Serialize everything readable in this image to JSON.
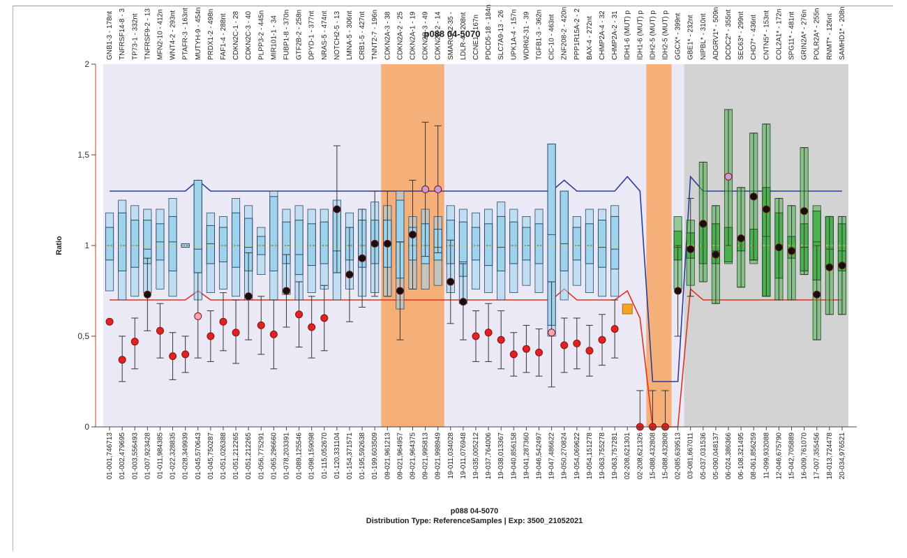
{
  "chart_data": {
    "type": "box",
    "title": "p088 04-5070",
    "ylabel": "Ratio",
    "xlabel": "p088 04-5070",
    "subtitle": "Distribution Type: ReferenceSamples | Exp: 3500_21052021",
    "ylim": [
      0,
      2
    ],
    "yticks": [
      "0",
      "0,5",
      "1",
      "1,5",
      "2"
    ],
    "threshold_upper": 1.3,
    "threshold_lower": 0.7,
    "colors": {
      "background": "#ebe9f6",
      "highlight": "#f5b07a",
      "gray_region": "#d3d3d3",
      "blue_box": "#9fd3ec",
      "blue_box_edge": "#2b4a6b",
      "green_box": "#4caf50",
      "green_box_edge": "#1f4d22",
      "upper_line": "#2a3b9a",
      "lower_line": "#e03020",
      "red_point": "#e02222",
      "black_point": "#111111",
      "pink_point": "#f2a7b8",
      "lilac_point": "#c79ed6",
      "orange_point": "#f5a524",
      "median_mark": "#e8d84a"
    },
    "regions": [
      {
        "kind": "highlight",
        "from": 22,
        "to": 26
      },
      {
        "kind": "highlight",
        "from": 43,
        "to": 44
      },
      {
        "kind": "gray",
        "from": 46,
        "to": 58
      }
    ],
    "probes": [
      {
        "top": "GNB1-3 - 178nt",
        "bottom": "01-001,746713",
        "q1": 0.92,
        "q3": 1.1,
        "median": 1.0,
        "wl": 0.75,
        "wh": 1.18,
        "point": 0.58,
        "pc": "red",
        "box": "blue"
      },
      {
        "top": "TNFRSF14-8 - 3",
        "bottom": "01-002,479695",
        "q1": 0.86,
        "q3": 1.18,
        "median": 1.0,
        "wl": 0.7,
        "wh": 1.25,
        "point": 0.37,
        "pc": "red",
        "box": "blue",
        "el": 0.25,
        "eh": 0.5
      },
      {
        "top": "TP73-1 - 332nt",
        "bottom": "01-003,556493",
        "q1": 0.88,
        "q3": 1.14,
        "median": 1.0,
        "wl": 0.72,
        "wh": 1.22,
        "point": 0.47,
        "pc": "red",
        "box": "blue",
        "el": 0.32,
        "eh": 0.6
      },
      {
        "top": "TNFRSF9-2 - 13",
        "bottom": "01-007,923428",
        "q1": 0.9,
        "q3": 1.14,
        "median": 0.98,
        "wl": 0.74,
        "wh": 1.2,
        "point": 0.73,
        "pc": "black",
        "box": "blue",
        "el": 0.53,
        "eh": 0.93
      },
      {
        "top": "MFN2-10 - 412n",
        "bottom": "01-011,984385",
        "q1": 0.92,
        "q3": 1.12,
        "median": 1.02,
        "wl": 0.76,
        "wh": 1.2,
        "point": 0.53,
        "pc": "red",
        "box": "blue",
        "el": 0.38,
        "eh": 0.68
      },
      {
        "top": "WNT4-2 - 293nt",
        "bottom": "01-022,328835",
        "q1": 0.86,
        "q3": 1.16,
        "median": 1.02,
        "wl": 0.72,
        "wh": 1.26,
        "point": 0.39,
        "pc": "red",
        "box": "blue",
        "el": 0.26,
        "eh": 0.52
      },
      {
        "top": "PTAFR-3 - 163nt",
        "bottom": "01-028,349939",
        "q1": 0.99,
        "q3": 1.01,
        "median": 1.0,
        "wl": 0.99,
        "wh": 1.01,
        "point": 0.4,
        "pc": "red",
        "box": "blue",
        "el": 0.3,
        "eh": 0.5
      },
      {
        "top": "MUTYH-9 - 454n",
        "bottom": "01-045,570643",
        "q1": 0.85,
        "q3": 1.36,
        "median": 0.98,
        "wl": 0.7,
        "wh": 1.36,
        "point": 0.61,
        "pc": "pink",
        "box": "blue",
        "el": 0.38,
        "eh": 0.85
      },
      {
        "top": "PRDX1-2 - 498n",
        "bottom": "01-045,750287",
        "q1": 0.9,
        "q3": 1.11,
        "median": 1.01,
        "wl": 0.74,
        "wh": 1.18,
        "point": 0.5,
        "pc": "red",
        "box": "blue",
        "el": 0.36,
        "eh": 0.64
      },
      {
        "top": "FAF1-4 - 288nt",
        "bottom": "01-051,026388",
        "q1": 0.91,
        "q3": 1.1,
        "median": 1.0,
        "wl": 0.76,
        "wh": 1.16,
        "point": 0.58,
        "pc": "red",
        "box": "blue",
        "el": 0.42,
        "eh": 0.74
      },
      {
        "top": "CDKN2C-1 - 28",
        "bottom": "01-051,212265",
        "q1": 0.88,
        "q3": 1.18,
        "median": 1.0,
        "wl": 0.72,
        "wh": 1.26,
        "point": 0.52,
        "pc": "red",
        "box": "blue",
        "el": 0.35,
        "eh": 0.7
      },
      {
        "top": "CDKN2C-3 - 40",
        "bottom": "01-051,212265",
        "q1": 0.86,
        "q3": 1.15,
        "median": 0.99,
        "wl": 0.7,
        "wh": 1.22,
        "point": 0.72,
        "pc": "black",
        "box": "blue",
        "el": 0.48,
        "eh": 0.96
      },
      {
        "top": "PLPP3-2 - 445n",
        "bottom": "01-056,775291",
        "q1": 0.95,
        "q3": 1.05,
        "median": 1.0,
        "wl": 0.84,
        "wh": 1.1,
        "point": 0.56,
        "pc": "red",
        "box": "blue",
        "el": 0.4,
        "eh": 0.72
      },
      {
        "top": "MIR101-1 - 34",
        "bottom": "01-065,296660",
        "q1": 0.86,
        "q3": 1.27,
        "median": 1.0,
        "wl": 0.7,
        "wh": 1.3,
        "point": 0.51,
        "pc": "red",
        "box": "blue",
        "el": 0.32,
        "eh": 0.7
      },
      {
        "top": "FUBP1-8 - 370n",
        "bottom": "01-078,203391",
        "q1": 0.9,
        "q3": 1.13,
        "median": 1.0,
        "wl": 0.73,
        "wh": 1.2,
        "point": 0.75,
        "pc": "black",
        "box": "blue",
        "el": 0.55,
        "eh": 0.95
      },
      {
        "top": "GTF2B-2 - 258n",
        "bottom": "01-089,125546",
        "q1": 0.84,
        "q3": 1.14,
        "median": 0.95,
        "wl": 0.7,
        "wh": 1.22,
        "point": 0.62,
        "pc": "red",
        "box": "blue",
        "el": 0.44,
        "eh": 0.8
      },
      {
        "top": "DPYD-1 - 377nt",
        "bottom": "01-098,159098",
        "q1": 0.89,
        "q3": 1.12,
        "median": 1.0,
        "wl": 0.74,
        "wh": 1.2,
        "point": 0.55,
        "pc": "red",
        "box": "blue",
        "el": 0.38,
        "eh": 0.72
      },
      {
        "top": "NRAS-5 - 474nt",
        "bottom": "01-115,052670",
        "q1": 0.9,
        "q3": 1.13,
        "median": 1.0,
        "wl": 0.76,
        "wh": 1.2,
        "point": 0.6,
        "pc": "red",
        "box": "blue",
        "el": 0.42,
        "eh": 0.78
      },
      {
        "top": "NOTCH2-5 - 13",
        "bottom": "01-120,331104",
        "q1": 0.85,
        "q3": 1.19,
        "median": 0.97,
        "wl": 0.7,
        "wh": 1.25,
        "point": 1.2,
        "pc": "black",
        "box": "blue",
        "el": 0.85,
        "eh": 1.55
      },
      {
        "top": "LMNA-5 - 306nt",
        "bottom": "01-154,371571",
        "q1": 0.92,
        "q3": 1.1,
        "median": 1.0,
        "wl": 0.76,
        "wh": 1.18,
        "point": 0.84,
        "pc": "black",
        "box": "blue",
        "el": 0.58,
        "eh": 1.1
      },
      {
        "top": "CRB1-5 - 427nt",
        "bottom": "01-195,592638",
        "q1": 0.88,
        "q3": 1.14,
        "median": 1.0,
        "wl": 0.72,
        "wh": 1.2,
        "point": 0.93,
        "pc": "black",
        "box": "blue",
        "el": 0.66,
        "eh": 1.2
      },
      {
        "top": "TNNT2-7 - 196n",
        "bottom": "01-199,603509",
        "q1": 0.9,
        "q3": 1.14,
        "median": 1.0,
        "wl": 0.74,
        "wh": 1.24,
        "point": 1.01,
        "pc": "black",
        "box": "blue",
        "el": 0.72,
        "eh": 1.3
      },
      {
        "top": "CDKN2A-3 - 38",
        "bottom": "09-021,961213",
        "q1": 0.88,
        "q3": 1.14,
        "median": 1.0,
        "wl": 0.72,
        "wh": 1.22,
        "point": 1.01,
        "pc": "black",
        "box": "blue",
        "el": 0.72,
        "eh": 1.3
      },
      {
        "top": "CDKN2A-2 - 25",
        "bottom": "09-021,964957",
        "q1": 0.82,
        "q3": 1.25,
        "median": 1.02,
        "wl": 0.65,
        "wh": 1.3,
        "point": 0.75,
        "pc": "black",
        "box": "blue",
        "el": 0.48,
        "eh": 1.02
      },
      {
        "top": "CDKN2A-1 - 19",
        "bottom": "09-021,964375",
        "q1": 0.92,
        "q3": 1.1,
        "median": 1.0,
        "wl": 0.76,
        "wh": 1.16,
        "point": 1.06,
        "pc": "black",
        "box": "blue",
        "el": 0.76,
        "eh": 1.36
      },
      {
        "top": "CDKN2B-3 - 49",
        "bottom": "09-021,995813",
        "q1": 0.9,
        "q3": 1.12,
        "median": 1.0,
        "wl": 0.76,
        "wh": 1.2,
        "point": 1.31,
        "pc": "lilac",
        "box": "blue",
        "el": 0.94,
        "eh": 1.68
      },
      {
        "top": "CDKN2B-2 - 14",
        "bottom": "09-021,998949",
        "q1": 0.92,
        "q3": 1.09,
        "median": 0.99,
        "wl": 0.78,
        "wh": 1.16,
        "point": 1.31,
        "pc": "lilac",
        "box": "blue",
        "el": 0.96,
        "eh": 1.66
      },
      {
        "top": "SMARCA2-35 -",
        "bottom": "19-011,034028",
        "q1": 0.9,
        "q3": 1.14,
        "median": 1.0,
        "wl": 0.74,
        "wh": 1.22,
        "point": 0.8,
        "pc": "black",
        "box": "blue",
        "el": 0.57,
        "eh": 1.03
      },
      {
        "top": "LDLR-4 - 208nt",
        "bottom": "19-011,076948",
        "q1": 0.83,
        "q3": 1.13,
        "median": 0.91,
        "wl": 0.68,
        "wh": 1.2,
        "point": 0.69,
        "pc": "black",
        "box": "blue",
        "el": 0.48,
        "eh": 0.9
      },
      {
        "top": "CCNE1 - 167n",
        "bottom": "19-035,005212",
        "q1": 0.92,
        "q3": 1.1,
        "median": 1.0,
        "wl": 0.76,
        "wh": 1.18,
        "point": 0.5,
        "pc": "red",
        "box": "blue",
        "el": 0.36,
        "eh": 0.64
      },
      {
        "top": "PDCD5-18 - 184n",
        "bottom": "19-037,764006",
        "q1": 0.89,
        "q3": 1.12,
        "median": 1.0,
        "wl": 0.74,
        "wh": 1.2,
        "point": 0.52,
        "pc": "red",
        "box": "blue",
        "el": 0.36,
        "eh": 0.68
      },
      {
        "top": "SLC7A9-13 - 26",
        "bottom": "19-038,013367",
        "q1": 0.86,
        "q3": 1.16,
        "median": 0.99,
        "wl": 0.7,
        "wh": 1.24,
        "point": 0.48,
        "pc": "red",
        "box": "blue",
        "el": 0.32,
        "eh": 0.64
      },
      {
        "top": "UPK1A-4 - 157n",
        "bottom": "19-040,856158",
        "q1": 0.9,
        "q3": 1.13,
        "median": 1.0,
        "wl": 0.74,
        "wh": 1.2,
        "point": 0.4,
        "pc": "red",
        "box": "blue",
        "el": 0.28,
        "eh": 0.52
      },
      {
        "top": "WDR62-31 - 39",
        "bottom": "19-041,287360",
        "q1": 0.92,
        "q3": 1.1,
        "median": 1.0,
        "wl": 0.78,
        "wh": 1.16,
        "point": 0.43,
        "pc": "red",
        "box": "blue",
        "el": 0.3,
        "eh": 0.56
      },
      {
        "top": "TGFB1-3 - 362n",
        "bottom": "19-046,542497",
        "q1": 0.9,
        "q3": 1.12,
        "median": 1.0,
        "wl": 0.74,
        "wh": 1.2,
        "point": 0.41,
        "pc": "red",
        "box": "blue",
        "el": 0.28,
        "eh": 0.54
      },
      {
        "top": "CIC-10 - 463nt",
        "bottom": "19-047,486622",
        "q1": 0.56,
        "q3": 1.56,
        "median": 1.06,
        "wl": 0.5,
        "wh": 1.56,
        "point": 0.52,
        "pc": "pink",
        "box": "blue",
        "el": 0.22,
        "eh": 0.8
      },
      {
        "top": "ZNF208-2 - 420n",
        "bottom": "19-050,270824",
        "q1": 0.86,
        "q3": 1.3,
        "median": 1.01,
        "wl": 0.7,
        "wh": 1.3,
        "point": 0.45,
        "pc": "red",
        "box": "blue",
        "el": 0.3,
        "eh": 0.6
      },
      {
        "top": "PPP1R15A-2 - 2",
        "bottom": "19-054,069622",
        "q1": 0.92,
        "q3": 1.1,
        "median": 1.0,
        "wl": 0.78,
        "wh": 1.16,
        "point": 0.46,
        "pc": "red",
        "box": "blue",
        "el": 0.32,
        "eh": 0.6
      },
      {
        "top": "BAX-4 - 272nt",
        "bottom": "19-054,151278",
        "q1": 0.9,
        "q3": 1.12,
        "median": 1.0,
        "wl": 0.74,
        "wh": 1.2,
        "point": 0.42,
        "pc": "red",
        "box": "blue",
        "el": 0.28,
        "eh": 0.56
      },
      {
        "top": "CHMP2A-4 - 32",
        "bottom": "19-063,755278",
        "q1": 0.88,
        "q3": 1.14,
        "median": 0.99,
        "wl": 0.72,
        "wh": 1.2,
        "point": 0.48,
        "pc": "red",
        "box": "blue",
        "el": 0.34,
        "eh": 0.62
      },
      {
        "top": "CHMP2A-2 - 31",
        "bottom": "19-063,757281",
        "q1": 0.87,
        "q3": 1.16,
        "median": 0.98,
        "wl": 0.72,
        "wh": 1.22,
        "point": 0.54,
        "pc": "red",
        "box": "blue",
        "el": 0.38,
        "eh": 0.7
      },
      {
        "top": "IDH1-6 (MUT) p",
        "bottom": "02-208,621301",
        "point": 0.65,
        "pc": "orange-square"
      },
      {
        "top": "IDH1-6 (MUT) p",
        "bottom": "02-208,621326",
        "point": 0.0,
        "pc": "red",
        "el": 0.0,
        "eh": 0.2
      },
      {
        "top": "IDH2-5 (MUT) p",
        "bottom": "15-088,432808",
        "point": 0.0,
        "pc": "red",
        "el": 0.0,
        "eh": 0.2
      },
      {
        "top": "IDH2-5 (MUT) p",
        "bottom": "15-088,432808",
        "point": 0.0,
        "pc": "red",
        "el": 0.0,
        "eh": 0.2
      },
      {
        "top": "GGCX* - 399nt",
        "bottom": "02-085,639513",
        "q1": 0.92,
        "q3": 1.08,
        "median": 0.99,
        "wl": 0.76,
        "wh": 1.16,
        "point": 0.75,
        "pc": "black",
        "box": "green",
        "el": 0.5,
        "eh": 1.0
      },
      {
        "top": "GBE1* - 232nt",
        "bottom": "03-081,667011",
        "q1": 0.93,
        "q3": 1.07,
        "median": 0.99,
        "wl": 0.78,
        "wh": 1.14,
        "point": 0.98,
        "pc": "black",
        "box": "green",
        "el": 0.72,
        "eh": 1.26
      },
      {
        "top": "NIPBL* - 310nt",
        "bottom": "05-037,031536",
        "q1": 0.9,
        "q3": 1.12,
        "median": 1.0,
        "wl": 0.8,
        "wh": 1.46,
        "point": 1.12,
        "pc": "black",
        "box": "green",
        "el": 0.8,
        "eh": 1.46
      },
      {
        "top": "ADGRV1* - 509n",
        "bottom": "05-090,048137",
        "q1": 0.9,
        "q3": 1.12,
        "median": 0.97,
        "wl": 0.68,
        "wh": 1.22,
        "point": 0.95,
        "pc": "black",
        "box": "green",
        "el": 0.68,
        "eh": 1.22
      },
      {
        "top": "DCDC2* - 355nt",
        "bottom": "06-024,386366",
        "q1": 0.91,
        "q3": 1.1,
        "median": 1.0,
        "wl": 0.9,
        "wh": 1.75,
        "point": 1.38,
        "pc": "lilac",
        "box": "green",
        "el": 1.0,
        "eh": 1.75
      },
      {
        "top": "SEC63* - 299nt",
        "bottom": "06-108,321495",
        "q1": 0.97,
        "q3": 1.03,
        "median": 1.0,
        "wl": 0.77,
        "wh": 1.32,
        "point": 1.04,
        "pc": "black",
        "box": "green",
        "el": 0.77,
        "eh": 1.32
      },
      {
        "top": "CHD7* - 436nt",
        "bottom": "08-061,856259",
        "q1": 0.92,
        "q3": 1.09,
        "median": 1.0,
        "wl": 0.9,
        "wh": 1.62,
        "point": 1.27,
        "pc": "black",
        "box": "green",
        "el": 0.92,
        "eh": 1.62
      },
      {
        "top": "CNTN5* - 153nt",
        "bottom": "11-099,932088",
        "q1": 0.72,
        "q3": 1.32,
        "median": 1.05,
        "wl": 0.72,
        "wh": 1.67,
        "point": 1.2,
        "pc": "black",
        "box": "green",
        "el": 0.72,
        "eh": 1.67
      },
      {
        "top": "COL2A1* - 172n",
        "bottom": "12-046,675790",
        "q1": 0.82,
        "q3": 1.18,
        "median": 1.0,
        "wl": 0.7,
        "wh": 1.26,
        "point": 0.99,
        "pc": "black",
        "box": "green",
        "el": 0.7,
        "eh": 1.26
      },
      {
        "top": "SPG11* - 481nt",
        "bottom": "15-042,705889",
        "q1": 0.93,
        "q3": 1.05,
        "median": 0.98,
        "wl": 0.7,
        "wh": 1.22,
        "point": 0.97,
        "pc": "black",
        "box": "green",
        "el": 0.7,
        "eh": 1.22
      },
      {
        "top": "GRIN2A* - 276n",
        "bottom": "16-009,761070",
        "q1": 0.86,
        "q3": 1.12,
        "median": 0.99,
        "wl": 0.84,
        "wh": 1.54,
        "point": 1.19,
        "pc": "black",
        "box": "green",
        "el": 0.84,
        "eh": 1.54
      },
      {
        "top": "POLR2A* - 255n",
        "bottom": "17-007,355456",
        "q1": 0.81,
        "q3": 1.19,
        "median": 1.02,
        "wl": 0.48,
        "wh": 1.22,
        "point": 0.73,
        "pc": "black",
        "box": "green",
        "el": 0.48,
        "eh": 1.0
      },
      {
        "top": "RNMT* - 126nt",
        "bottom": "18-013,724478",
        "q1": 0.88,
        "q3": 1.16,
        "median": 0.98,
        "wl": 0.62,
        "wh": 1.16,
        "point": 0.88,
        "pc": "black",
        "box": "green",
        "el": 0.62,
        "eh": 1.16
      },
      {
        "top": "SAMHD1* - 208n",
        "bottom": "20-034,976521",
        "q1": 0.86,
        "q3": 1.12,
        "median": 0.97,
        "wl": 0.62,
        "wh": 1.16,
        "point": 0.89,
        "pc": "black",
        "box": "green",
        "el": 0.62,
        "eh": 1.16
      }
    ]
  }
}
